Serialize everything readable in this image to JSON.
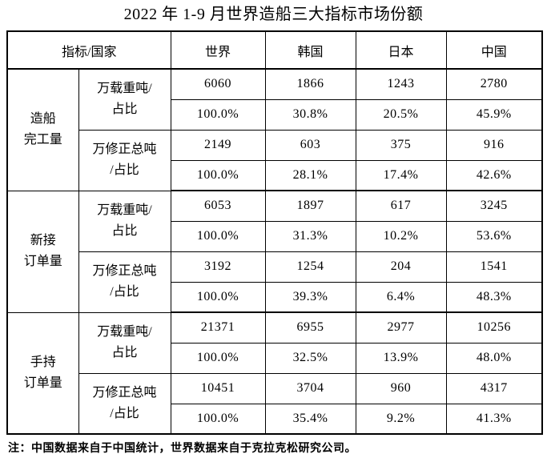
{
  "title": "2022 年 1-9 月世界造船三大指标市场份额",
  "table": {
    "corner_header": "指标/国家",
    "country_headers": [
      "世界",
      "韩国",
      "日本",
      "中国"
    ],
    "sections": [
      {
        "label_line1": "造船",
        "label_line2": "完工量",
        "metrics": [
          {
            "label_line1": "万载重吨/",
            "label_line2": "占比",
            "values": [
              "6060",
              "1866",
              "1243",
              "2780"
            ],
            "shares": [
              "100.0%",
              "30.8%",
              "20.5%",
              "45.9%"
            ]
          },
          {
            "label_line1": "万修正总吨",
            "label_line2": "/占比",
            "values": [
              "2149",
              "603",
              "375",
              "916"
            ],
            "shares": [
              "100.0%",
              "28.1%",
              "17.4%",
              "42.6%"
            ]
          }
        ]
      },
      {
        "label_line1": "新接",
        "label_line2": "订单量",
        "metrics": [
          {
            "label_line1": "万载重吨/",
            "label_line2": "占比",
            "values": [
              "6053",
              "1897",
              "617",
              "3245"
            ],
            "shares": [
              "100.0%",
              "31.3%",
              "10.2%",
              "53.6%"
            ]
          },
          {
            "label_line1": "万修正总吨",
            "label_line2": "/占比",
            "values": [
              "3192",
              "1254",
              "204",
              "1541"
            ],
            "shares": [
              "100.0%",
              "39.3%",
              "6.4%",
              "48.3%"
            ]
          }
        ]
      },
      {
        "label_line1": "手持",
        "label_line2": "订单量",
        "metrics": [
          {
            "label_line1": "万载重吨/",
            "label_line2": "占比",
            "values": [
              "21371",
              "6955",
              "2977",
              "10256"
            ],
            "shares": [
              "100.0%",
              "32.5%",
              "13.9%",
              "48.0%"
            ]
          },
          {
            "label_line1": "万修正总吨",
            "label_line2": "/占比",
            "values": [
              "10451",
              "3704",
              "960",
              "4317"
            ],
            "shares": [
              "100.0%",
              "35.4%",
              "9.2%",
              "41.3%"
            ]
          }
        ]
      }
    ]
  },
  "footnote": "注：中国数据来自于中国统计，世界数据来自于克拉克松研究公司。"
}
